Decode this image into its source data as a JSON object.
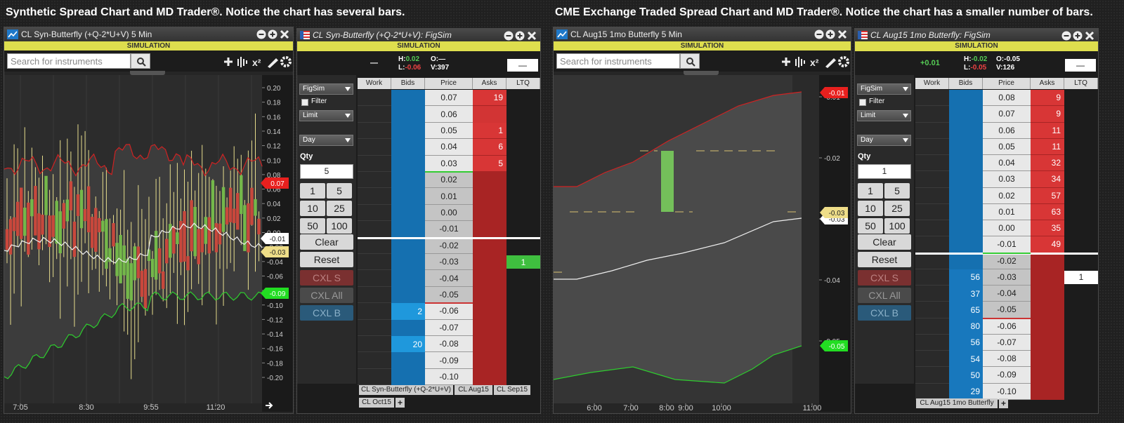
{
  "left": {
    "caption": "Synthetic Spread Chart and MD Trader®. Notice the chart has several bars.",
    "chart": {
      "title": "CL Syn-Butterfly (+Q-2*U+V) 5 Min",
      "banner": "SIMULATION",
      "search": "Search for instruments",
      "x2_icon": "x²",
      "yticks": [
        "0.20",
        "0.18",
        "0.16",
        "0.14",
        "0.12",
        "0.10",
        "0.08",
        "0.06",
        "0.04",
        "0.02",
        "0.00",
        "-0.02",
        "-0.04",
        "-0.06",
        "-0.08",
        "-0.10",
        "-0.12",
        "-0.14",
        "-0.16",
        "-0.18",
        "-0.20"
      ],
      "xticks": [
        "7:05",
        "8:30",
        "9:55",
        "11:20"
      ],
      "flags": [
        {
          "text": "0.07",
          "color": "#e8201e"
        },
        {
          "text": "-0.01",
          "color": "#ffffff"
        },
        {
          "text": "-0.03",
          "color": "#eedd88"
        },
        {
          "text": "-0.09",
          "color": "#22dd22"
        }
      ]
    },
    "trader": {
      "title": "CL Syn-Butterfly (+Q-2*U+V): FigSim",
      "banner": "SIMULATION",
      "stats": {
        "last": "—",
        "high": {
          "label": "H:",
          "value": "0.02"
        },
        "low": {
          "label": "L:",
          "value": "-0.06"
        },
        "open": {
          "label": "O:",
          "value": "—"
        },
        "volume": {
          "label": "V:",
          "value": "397"
        },
        "box": "—"
      },
      "account": "FigSim",
      "filter": "Filter",
      "order_type": "Limit",
      "tif": "Day",
      "qty_label": "Qty",
      "qty": "5",
      "qty_buttons": [
        "1",
        "5",
        "10",
        "25",
        "50",
        "100"
      ],
      "clear": "Clear",
      "reset": "Reset",
      "cxl": [
        "CXL S",
        "CXL All",
        "CXL B"
      ],
      "columns": [
        "Work",
        "Bids",
        "Price",
        "Asks",
        "LTQ"
      ],
      "rows": [
        {
          "price": "0.07",
          "bid": null,
          "ask": "19",
          "ltq": null
        },
        {
          "price": "0.06",
          "bid": null,
          "ask": null,
          "ltq": null
        },
        {
          "price": "0.05",
          "bid": null,
          "ask": "1",
          "ltq": null
        },
        {
          "price": "0.04",
          "bid": null,
          "ask": "6",
          "ltq": null
        },
        {
          "price": "0.03",
          "bid": null,
          "ask": "5",
          "ltq": null
        },
        {
          "price": "0.02",
          "bid": null,
          "ask": null,
          "ltq": null
        },
        {
          "price": "0.01",
          "bid": null,
          "ask": null,
          "ltq": null
        },
        {
          "price": "0.00",
          "bid": null,
          "ask": null,
          "ltq": null
        },
        {
          "price": "-0.01",
          "bid": null,
          "ask": null,
          "ltq": null
        },
        {
          "price": "-0.02",
          "bid": null,
          "ask": null,
          "ltq": null
        },
        {
          "price": "-0.03",
          "bid": null,
          "ask": null,
          "ltq": "1"
        },
        {
          "price": "-0.04",
          "bid": null,
          "ask": null,
          "ltq": null
        },
        {
          "price": "-0.05",
          "bid": null,
          "ask": null,
          "ltq": null
        },
        {
          "price": "-0.06",
          "bid": "2",
          "ask": null,
          "ltq": null
        },
        {
          "price": "-0.07",
          "bid": null,
          "ask": null,
          "ltq": null
        },
        {
          "price": "-0.08",
          "bid": "20",
          "ask": null,
          "ltq": null
        },
        {
          "price": "-0.09",
          "bid": null,
          "ask": null,
          "ltq": null
        },
        {
          "price": "-0.10",
          "bid": null,
          "ask": null,
          "ltq": null
        }
      ],
      "tabs": [
        "CL Syn-Butterfly (+Q-2*U+V)",
        "CL Aug15",
        "CL Sep15",
        "CL Oct15"
      ],
      "add_tab": "+"
    }
  },
  "right": {
    "caption": "CME Exchange Traded Spread Chart and MD Trader®. Notice the chart has a smaller number of bars.",
    "chart": {
      "title": "CL Aug15 1mo Butterfly 5 Min",
      "banner": "SIMULATION",
      "search": "Search for instruments",
      "x2_icon": "x²",
      "yticks": [
        "-0.01",
        "-0.02",
        "-0.03",
        "-0.04",
        "-0.05"
      ],
      "xticks": [
        "6:00",
        "7:00",
        "8:00",
        "9:00",
        "10:00",
        "11:00"
      ],
      "flags": [
        {
          "text": "-0.01",
          "color": "#e8201e"
        },
        {
          "text": "-0.03",
          "color": "#ffffff"
        },
        {
          "text": "-0.03",
          "color": "#eedd88"
        },
        {
          "text": "-0.05",
          "color": "#22dd22"
        }
      ]
    },
    "trader": {
      "title": "CL Aug15 1mo Butterfly: FigSim",
      "banner": "SIMULATION",
      "stats": {
        "last": "+0.01",
        "high": {
          "label": "H:",
          "value": "-0.02"
        },
        "low": {
          "label": "L:",
          "value": "-0.05"
        },
        "open": {
          "label": "O:",
          "value": "-0.05"
        },
        "volume": {
          "label": "V:",
          "value": "126"
        },
        "box": "—"
      },
      "account": "FigSim",
      "filter": "Filter",
      "order_type": "Limit",
      "tif": "Day",
      "qty_label": "Qty",
      "qty": "1",
      "qty_buttons": [
        "1",
        "5",
        "10",
        "25",
        "50",
        "100"
      ],
      "clear": "Clear",
      "reset": "Reset",
      "cxl": [
        "CXL S",
        "CXL All",
        "CXL B"
      ],
      "columns": [
        "Work",
        "Bids",
        "Price",
        "Asks",
        "LTQ"
      ],
      "rows": [
        {
          "price": "0.08",
          "bid": null,
          "ask": "9",
          "ltq": null
        },
        {
          "price": "0.07",
          "bid": null,
          "ask": "9",
          "ltq": null
        },
        {
          "price": "0.06",
          "bid": null,
          "ask": "11",
          "ltq": null
        },
        {
          "price": "0.05",
          "bid": null,
          "ask": "11",
          "ltq": null
        },
        {
          "price": "0.04",
          "bid": null,
          "ask": "32",
          "ltq": null
        },
        {
          "price": "0.03",
          "bid": null,
          "ask": "34",
          "ltq": null
        },
        {
          "price": "0.02",
          "bid": null,
          "ask": "57",
          "ltq": null
        },
        {
          "price": "0.01",
          "bid": null,
          "ask": "63",
          "ltq": null
        },
        {
          "price": "0.00",
          "bid": null,
          "ask": "35",
          "ltq": null
        },
        {
          "price": "-0.01",
          "bid": null,
          "ask": "49",
          "ltq": null
        },
        {
          "price": "-0.02",
          "bid": null,
          "ask": null,
          "ltq": null
        },
        {
          "price": "-0.03",
          "bid": "56",
          "ask": null,
          "ltq": "1"
        },
        {
          "price": "-0.04",
          "bid": "37",
          "ask": null,
          "ltq": null
        },
        {
          "price": "-0.05",
          "bid": "65",
          "ask": null,
          "ltq": null
        },
        {
          "price": "-0.06",
          "bid": "80",
          "ask": null,
          "ltq": null
        },
        {
          "price": "-0.07",
          "bid": "56",
          "ask": null,
          "ltq": null
        },
        {
          "price": "-0.08",
          "bid": "54",
          "ask": null,
          "ltq": null
        },
        {
          "price": "-0.09",
          "bid": "50",
          "ask": null,
          "ltq": null
        },
        {
          "price": "-0.10",
          "bid": "29",
          "ask": null,
          "ltq": null
        }
      ],
      "tabs": [
        "CL Aug15 1mo Butterfly"
      ],
      "add_tab": "+"
    }
  }
}
